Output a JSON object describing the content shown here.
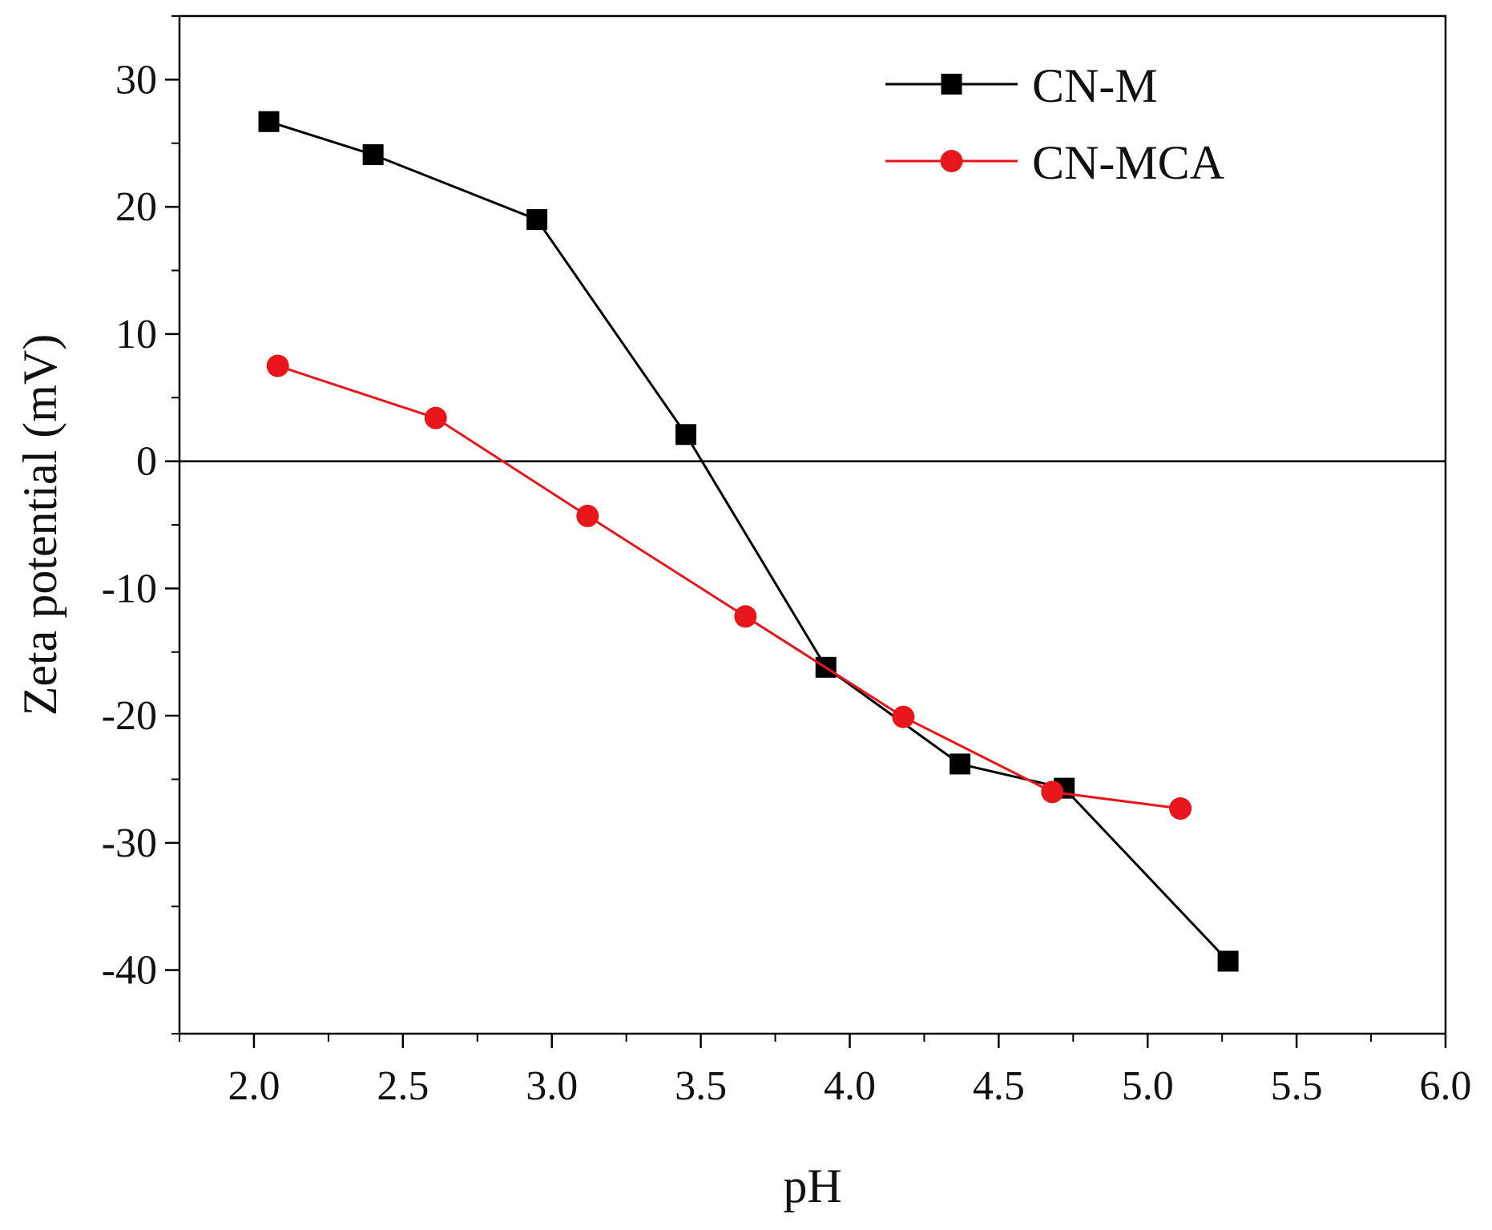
{
  "chart_data": {
    "type": "line",
    "title": "",
    "xlabel": "pH",
    "ylabel": "Zeta potential (mV)",
    "xlim": [
      1.75,
      6.0
    ],
    "ylim": [
      -45,
      35
    ],
    "x_ticks": [
      2.0,
      2.5,
      3.0,
      3.5,
      4.0,
      4.5,
      5.0,
      5.5,
      6.0
    ],
    "x_tick_labels": [
      "2.0",
      "2.5",
      "3.0",
      "3.5",
      "4.0",
      "4.5",
      "5.0",
      "5.5",
      "6.0"
    ],
    "y_ticks": [
      30,
      20,
      10,
      0,
      -10,
      -20,
      -30,
      -40
    ],
    "y_tick_labels": [
      "30",
      "20",
      "10",
      "0",
      "-10",
      "-20",
      "-30",
      "-40"
    ],
    "reference_line_y": 0,
    "grid": false,
    "legend_position": "top-right",
    "series": [
      {
        "name": "CN-M",
        "color": "#000000",
        "marker": "square",
        "x": [
          2.05,
          2.4,
          2.95,
          3.45,
          3.92,
          4.37,
          4.72,
          5.27
        ],
        "y": [
          26.7,
          24.1,
          19.0,
          2.1,
          -16.2,
          -23.8,
          -25.7,
          -39.3
        ]
      },
      {
        "name": "CN-MCA",
        "color": "#e8161b",
        "marker": "circle",
        "x": [
          2.08,
          2.61,
          3.12,
          3.65,
          4.18,
          4.68,
          5.11
        ],
        "y": [
          7.5,
          3.4,
          -4.3,
          -12.2,
          -20.1,
          -26.0,
          -27.3
        ]
      }
    ]
  }
}
